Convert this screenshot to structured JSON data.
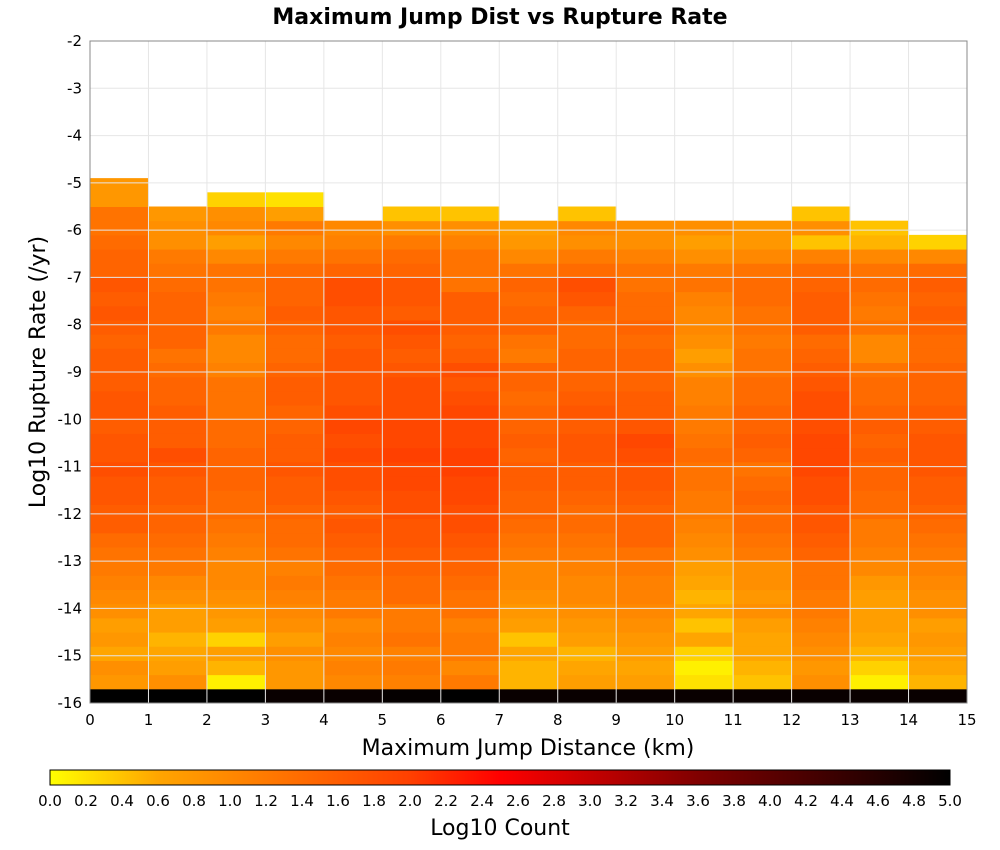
{
  "chart_data": {
    "type": "heatmap",
    "title": "Maximum Jump Dist vs Rupture Rate",
    "xlabel": "Maximum Jump Distance (km)",
    "ylabel": "Log10 Rupture Rate (/yr)",
    "colorbar_label": "Log10 Count",
    "xlim": [
      0,
      15
    ],
    "ylim": [
      -16,
      -2
    ],
    "x_ticks": [
      "0",
      "1",
      "2",
      "3",
      "4",
      "5",
      "6",
      "7",
      "8",
      "9",
      "10",
      "11",
      "12",
      "13",
      "14",
      "15"
    ],
    "y_ticks": [
      "-2",
      "-3",
      "-4",
      "-5",
      "-6",
      "-7",
      "-8",
      "-9",
      "-10",
      "-11",
      "-12",
      "-13",
      "-14",
      "-15",
      "-16"
    ],
    "colorbar_range": [
      0,
      5
    ],
    "colorbar_ticks": [
      "0.0",
      "0.2",
      "0.4",
      "0.6",
      "0.8",
      "1.0",
      "1.2",
      "1.4",
      "1.6",
      "1.8",
      "2.0",
      "2.2",
      "2.4",
      "2.6",
      "2.8",
      "3.0",
      "3.2",
      "3.4",
      "3.6",
      "3.8",
      "4.0",
      "4.2",
      "4.4",
      "4.6",
      "4.8",
      "5.0"
    ],
    "colormap": [
      "#ffff00",
      "#ffa500",
      "#ff4000",
      "#ff0000",
      "#800000",
      "#000000"
    ],
    "x_bin_width": 1,
    "y_bin_width": 0.3,
    "y_bin_start": -16,
    "bottom_row_note": "row [-16,-15.7] shows ~4.8-5.0 for all columns",
    "grid": true,
    "values": [
      [
        5.0,
        5.0,
        5.0,
        4.9,
        4.9,
        4.95,
        5.0,
        4.9,
        4.9,
        4.9,
        4.9,
        4.9,
        4.9,
        4.9,
        4.9
      ],
      [
        0.8,
        0.9,
        0.1,
        0.8,
        1.0,
        1.1,
        1.2,
        0.5,
        0.7,
        0.7,
        0.2,
        0.4,
        0.9,
        0.1,
        0.5
      ],
      [
        0.9,
        0.7,
        0.5,
        0.8,
        1.1,
        1.2,
        1.0,
        0.5,
        0.6,
        0.6,
        0.1,
        0.5,
        0.8,
        0.3,
        0.6
      ],
      [
        0.6,
        0.6,
        0.7,
        0.9,
        1.0,
        1.1,
        1.2,
        0.6,
        0.5,
        0.7,
        0.3,
        0.6,
        0.9,
        0.5,
        0.7
      ],
      [
        0.8,
        0.5,
        0.3,
        0.7,
        1.1,
        1.3,
        1.2,
        0.4,
        0.7,
        0.8,
        0.6,
        0.6,
        1.0,
        0.6,
        0.8
      ],
      [
        0.7,
        0.7,
        0.7,
        0.9,
        1.0,
        1.2,
        1.1,
        0.7,
        0.8,
        0.9,
        0.4,
        0.7,
        1.1,
        0.7,
        0.7
      ],
      [
        0.9,
        0.7,
        0.8,
        1.0,
        1.2,
        1.2,
        1.3,
        0.8,
        0.9,
        1.0,
        0.6,
        0.9,
        1.2,
        0.7,
        0.9
      ],
      [
        1.0,
        0.9,
        0.9,
        1.1,
        1.2,
        1.4,
        1.3,
        0.9,
        1.0,
        1.1,
        0.5,
        0.8,
        1.2,
        0.7,
        0.9
      ],
      [
        1.1,
        1.0,
        1.0,
        1.2,
        1.3,
        1.4,
        1.4,
        1.0,
        1.0,
        1.1,
        0.6,
        0.9,
        1.3,
        0.8,
        1.0
      ],
      [
        1.2,
        1.2,
        1.0,
        1.1,
        1.4,
        1.5,
        1.5,
        1.0,
        1.1,
        1.2,
        0.7,
        0.9,
        1.3,
        1.0,
        1.1
      ],
      [
        1.3,
        1.3,
        1.1,
        1.3,
        1.5,
        1.6,
        1.6,
        1.2,
        1.2,
        1.3,
        0.9,
        1.2,
        1.5,
        1.1,
        1.2
      ],
      [
        1.4,
        1.4,
        1.2,
        1.4,
        1.6,
        1.7,
        1.7,
        1.3,
        1.3,
        1.5,
        1.0,
        1.3,
        1.6,
        1.2,
        1.3
      ],
      [
        1.6,
        1.5,
        1.3,
        1.4,
        1.7,
        1.7,
        1.8,
        1.4,
        1.4,
        1.5,
        1.1,
        1.4,
        1.7,
        1.2,
        1.4
      ],
      [
        1.6,
        1.5,
        1.4,
        1.5,
        1.6,
        1.8,
        1.8,
        1.5,
        1.4,
        1.5,
        1.2,
        1.4,
        1.7,
        1.4,
        1.5
      ],
      [
        1.7,
        1.6,
        1.4,
        1.6,
        1.7,
        1.8,
        1.9,
        1.5,
        1.5,
        1.6,
        1.2,
        1.5,
        1.8,
        1.4,
        1.6
      ],
      [
        1.7,
        1.6,
        1.5,
        1.6,
        1.8,
        1.9,
        1.9,
        1.6,
        1.6,
        1.7,
        1.3,
        1.4,
        1.8,
        1.5,
        1.6
      ],
      [
        1.8,
        1.7,
        1.5,
        1.7,
        1.8,
        1.9,
        2.0,
        1.6,
        1.6,
        1.7,
        1.3,
        1.3,
        1.9,
        1.5,
        1.7
      ],
      [
        1.7,
        1.8,
        1.5,
        1.6,
        1.9,
        2.0,
        2.0,
        1.5,
        1.7,
        1.8,
        1.4,
        1.5,
        1.9,
        1.6,
        1.7
      ],
      [
        1.7,
        1.6,
        1.4,
        1.6,
        1.8,
        1.9,
        1.9,
        1.6,
        1.7,
        1.9,
        1.3,
        1.6,
        1.9,
        1.5,
        1.7
      ],
      [
        1.6,
        1.6,
        1.4,
        1.5,
        1.9,
        1.9,
        1.9,
        1.5,
        1.6,
        1.7,
        1.2,
        1.5,
        1.8,
        1.6,
        1.6
      ],
      [
        1.7,
        1.6,
        1.3,
        1.5,
        1.8,
        1.8,
        1.9,
        1.5,
        1.7,
        1.6,
        1.2,
        1.5,
        1.8,
        1.5,
        1.6
      ],
      [
        1.7,
        1.5,
        1.3,
        1.6,
        1.7,
        1.8,
        1.8,
        1.4,
        1.6,
        1.6,
        1.1,
        1.4,
        1.8,
        1.4,
        1.5
      ],
      [
        1.6,
        1.5,
        1.3,
        1.6,
        1.7,
        1.8,
        1.7,
        1.5,
        1.5,
        1.5,
        1.1,
        1.4,
        1.7,
        1.4,
        1.5
      ],
      [
        1.6,
        1.4,
        1.1,
        1.5,
        1.7,
        1.7,
        1.8,
        1.5,
        1.5,
        1.5,
        0.9,
        1.3,
        1.6,
        1.3,
        1.5
      ],
      [
        1.6,
        1.3,
        1.0,
        1.4,
        1.7,
        1.6,
        1.6,
        1.2,
        1.5,
        1.5,
        0.7,
        1.3,
        1.5,
        1.0,
        1.4
      ],
      [
        1.5,
        1.5,
        1.0,
        1.4,
        1.6,
        1.7,
        1.5,
        1.3,
        1.4,
        1.4,
        0.9,
        1.2,
        1.4,
        1.0,
        1.4
      ],
      [
        1.6,
        1.5,
        1.2,
        1.5,
        1.7,
        1.8,
        1.6,
        1.5,
        1.4,
        1.5,
        1.0,
        1.3,
        1.6,
        1.3,
        1.5
      ],
      [
        1.7,
        1.5,
        1.1,
        1.6,
        1.7,
        1.6,
        1.6,
        1.5,
        1.5,
        1.4,
        1.0,
        1.3,
        1.6,
        1.2,
        1.6
      ],
      [
        1.6,
        1.5,
        1.2,
        1.5,
        1.8,
        1.7,
        1.6,
        1.4,
        1.7,
        1.4,
        1.1,
        1.4,
        1.6,
        1.3,
        1.5
      ],
      [
        1.7,
        1.4,
        1.3,
        1.5,
        1.8,
        1.7,
        1.3,
        1.5,
        1.8,
        1.3,
        1.3,
        1.4,
        1.5,
        1.4,
        1.6
      ],
      [
        1.5,
        1.3,
        1.3,
        1.4,
        1.5,
        1.5,
        1.3,
        1.3,
        1.4,
        1.3,
        1.2,
        1.3,
        1.4,
        1.3,
        1.4
      ],
      [
        1.5,
        1.2,
        1.0,
        1.2,
        1.3,
        1.4,
        1.3,
        1.0,
        1.2,
        1.1,
        0.9,
        1.0,
        1.1,
        1.0,
        1.0
      ],
      [
        1.4,
        0.9,
        0.7,
        1.0,
        1.1,
        1.2,
        1.1,
        0.8,
        0.9,
        0.9,
        0.7,
        0.8,
        0.4,
        0.5,
        0.3
      ],
      [
        1.3,
        0.9,
        1.0,
        1.2,
        1.0,
        0.9,
        0.9,
        0.7,
        1.0,
        0.9,
        0.9,
        0.8,
        0.9,
        0.4,
        null
      ],
      [
        1.3,
        0.8,
        0.9,
        0.7,
        null,
        0.4,
        0.4,
        null,
        0.4,
        null,
        null,
        null,
        0.4,
        null,
        null
      ],
      [
        0.8,
        null,
        0.3,
        0.2,
        null,
        null,
        null,
        null,
        null,
        null,
        null,
        null,
        null,
        null,
        null
      ],
      [
        0.8,
        null,
        null,
        null,
        null,
        null,
        null,
        null,
        null,
        null,
        null,
        null,
        null,
        null,
        null
      ],
      [
        null,
        null,
        null,
        null,
        null,
        null,
        null,
        null,
        null,
        null,
        null,
        null,
        null,
        null,
        null
      ],
      [
        null,
        null,
        null,
        null,
        null,
        null,
        null,
        null,
        null,
        null,
        null,
        null,
        null,
        null,
        null
      ],
      [
        null,
        null,
        null,
        null,
        null,
        null,
        null,
        null,
        null,
        null,
        null,
        null,
        null,
        null,
        null
      ],
      [
        null,
        null,
        null,
        null,
        null,
        null,
        null,
        null,
        null,
        null,
        null,
        null,
        null,
        null,
        null
      ],
      [
        null,
        null,
        null,
        null,
        null,
        null,
        null,
        null,
        null,
        null,
        null,
        null,
        null,
        null,
        null
      ],
      [
        null,
        null,
        null,
        null,
        null,
        null,
        null,
        null,
        null,
        null,
        null,
        null,
        null,
        null,
        null
      ],
      [
        null,
        null,
        null,
        null,
        null,
        null,
        null,
        null,
        null,
        null,
        null,
        null,
        null,
        null,
        null
      ],
      [
        null,
        null,
        null,
        null,
        null,
        null,
        null,
        null,
        null,
        null,
        null,
        null,
        null,
        null,
        null
      ],
      [
        null,
        null,
        null,
        null,
        null,
        null,
        null,
        null,
        null,
        null,
        null,
        null,
        null,
        null,
        null
      ],
      [
        null,
        null,
        null,
        null,
        null,
        null,
        null,
        null,
        null,
        null,
        null,
        null,
        null,
        null,
        null
      ]
    ]
  }
}
